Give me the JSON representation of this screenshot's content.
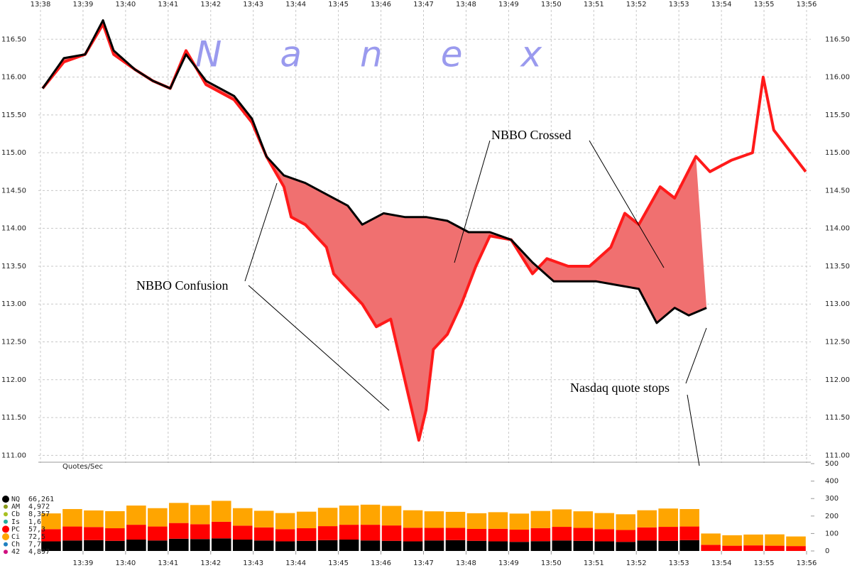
{
  "chart_data": [
    {
      "type": "line",
      "watermark": "Nanex",
      "watermark_color": "#9a9aee",
      "annotations": [
        "NBBO Confusion",
        "NBBO Crossed",
        "Nasdaq quote stops"
      ],
      "area_color": "#f07070",
      "grid": true,
      "xlim": [
        817.95,
        836.1
      ],
      "xticks": [
        {
          "value": 818,
          "label": "13:38"
        },
        {
          "value": 819,
          "label": "13:39"
        },
        {
          "value": 820,
          "label": "13:40"
        },
        {
          "value": 821,
          "label": "13:41"
        },
        {
          "value": 822,
          "label": "13:42"
        },
        {
          "value": 823,
          "label": "13:43"
        },
        {
          "value": 824,
          "label": "13:44"
        },
        {
          "value": 825,
          "label": "13:45"
        },
        {
          "value": 826,
          "label": "13:46"
        },
        {
          "value": 827,
          "label": "13:47"
        },
        {
          "value": 828,
          "label": "13:48"
        },
        {
          "value": 829,
          "label": "13:49"
        },
        {
          "value": 830,
          "label": "13:50"
        },
        {
          "value": 831,
          "label": "13:51"
        },
        {
          "value": 832,
          "label": "13:52"
        },
        {
          "value": 833,
          "label": "13:53"
        },
        {
          "value": 834,
          "label": "13:54"
        },
        {
          "value": 835,
          "label": "13:55"
        },
        {
          "value": 836,
          "label": "13:56"
        }
      ],
      "ylim": [
        110.9,
        117.0
      ],
      "yticks": [
        {
          "value": 111,
          "label": "111.00"
        },
        {
          "value": 111.5,
          "label": "111.50"
        },
        {
          "value": 112,
          "label": "112.00"
        },
        {
          "value": 112.5,
          "label": "112.50"
        },
        {
          "value": 113,
          "label": "113.00"
        },
        {
          "value": 113.5,
          "label": "113.50"
        },
        {
          "value": 114,
          "label": "114.00"
        },
        {
          "value": 114.5,
          "label": "114.50"
        },
        {
          "value": 115,
          "label": "115.00"
        },
        {
          "value": 115.5,
          "label": "115.50"
        },
        {
          "value": 116,
          "label": "116.00"
        },
        {
          "value": 116.5,
          "label": "116.50"
        }
      ],
      "series": [
        {
          "color": "#ff1a1a",
          "width": 4,
          "x": [
            818.05,
            818.55,
            819.05,
            819.47,
            819.72,
            820.22,
            820.64,
            821.05,
            821.42,
            821.89,
            822.55,
            822.97,
            823.31,
            823.72,
            823.89,
            824.22,
            824.72,
            824.89,
            825.22,
            825.56,
            825.89,
            826.23,
            826.56,
            826.89,
            827.06,
            827.23,
            827.56,
            827.89,
            828.23,
            828.56,
            829.06,
            829.56,
            829.9,
            830.4,
            830.9,
            831.4,
            831.73,
            832.06,
            832.56,
            832.9,
            833.4,
            833.73,
            834.23,
            834.73,
            834.98,
            835.23,
            835.57,
            835.98
          ],
          "values": [
            115.85,
            116.2,
            116.3,
            116.7,
            116.3,
            116.1,
            115.95,
            115.85,
            116.35,
            115.9,
            115.7,
            115.4,
            114.95,
            114.55,
            114.15,
            114.05,
            113.75,
            113.4,
            113.2,
            113.0,
            112.7,
            112.8,
            112.0,
            111.2,
            111.6,
            112.4,
            112.6,
            113.0,
            113.5,
            113.9,
            113.85,
            113.4,
            113.6,
            113.5,
            113.5,
            113.75,
            114.2,
            114.05,
            114.55,
            114.4,
            114.95,
            114.75,
            114.9,
            115.0,
            116.0,
            115.3,
            115.05,
            114.75
          ]
        },
        {
          "color": "#000000",
          "width": 3,
          "x": [
            818.05,
            818.55,
            819.05,
            819.47,
            819.72,
            820.22,
            820.64,
            821.05,
            821.42,
            821.89,
            822.55,
            822.97,
            823.31,
            823.72,
            824.22,
            824.72,
            825.22,
            825.56,
            826.06,
            826.56,
            827.06,
            827.56,
            828.06,
            828.56,
            829.06,
            829.56,
            830.06,
            830.56,
            831.06,
            831.56,
            832.06,
            832.48,
            832.9,
            833.23,
            833.65
          ],
          "values": [
            115.85,
            116.25,
            116.3,
            116.75,
            116.35,
            116.1,
            115.95,
            115.85,
            116.3,
            115.95,
            115.75,
            115.45,
            114.95,
            114.7,
            114.6,
            114.45,
            114.3,
            114.05,
            114.2,
            114.15,
            114.15,
            114.1,
            113.95,
            113.95,
            113.85,
            113.55,
            113.3,
            113.3,
            113.3,
            113.25,
            113.2,
            112.75,
            112.95,
            112.85,
            112.95
          ]
        }
      ]
    },
    {
      "type": "bar",
      "stacked": true,
      "ylabel": "Quotes/Sec",
      "xlim": [
        817.95,
        836.1
      ],
      "xticks": [
        {
          "value": 819,
          "label": "13:39"
        },
        {
          "value": 820,
          "label": "13:40"
        },
        {
          "value": 821,
          "label": "13:41"
        },
        {
          "value": 822,
          "label": "13:42"
        },
        {
          "value": 823,
          "label": "13:43"
        },
        {
          "value": 824,
          "label": "13:44"
        },
        {
          "value": 825,
          "label": "13:45"
        },
        {
          "value": 826,
          "label": "13:46"
        },
        {
          "value": 827,
          "label": "13:47"
        },
        {
          "value": 828,
          "label": "13:48"
        },
        {
          "value": 829,
          "label": "13:49"
        },
        {
          "value": 830,
          "label": "13:50"
        },
        {
          "value": 831,
          "label": "13:51"
        },
        {
          "value": 832,
          "label": "13:52"
        },
        {
          "value": 833,
          "label": "13:53"
        },
        {
          "value": 834,
          "label": "13:54"
        },
        {
          "value": 835,
          "label": "13:55"
        },
        {
          "value": 836,
          "label": "13:56"
        }
      ],
      "ylim": [
        0,
        500
      ],
      "yticks": [
        0,
        100,
        200,
        300,
        400,
        500
      ],
      "legend": [
        {
          "name": "NQ",
          "count": "66,261",
          "color": "#000000"
        },
        {
          "name": "AM",
          "count": "4,972",
          "color": "#8a9a1a"
        },
        {
          "name": "Cb",
          "count": "8,357",
          "color": "#a8c020"
        },
        {
          "name": "Is",
          "count": "1,6",
          "color": "#20b0a0"
        },
        {
          "name": "PC",
          "count": "57,3",
          "color": "#ff0000"
        },
        {
          "name": "Ci",
          "count": "72,5",
          "color": "#ffa500"
        },
        {
          "name": "Ch",
          "count": "7,7",
          "color": "#2080c0"
        },
        {
          "name": "42",
          "count": "4,897",
          "color": "#d01080"
        }
      ],
      "x": [
        818.25,
        818.75,
        819.25,
        819.75,
        820.25,
        820.75,
        821.25,
        821.75,
        822.25,
        822.75,
        823.25,
        823.75,
        824.25,
        824.75,
        825.25,
        825.75,
        826.25,
        826.75,
        827.25,
        827.75,
        828.25,
        828.75,
        829.25,
        829.75,
        830.25,
        830.75,
        831.25,
        831.75,
        832.25,
        832.75,
        833.25,
        833.75,
        834.25,
        834.75,
        835.25,
        835.75
      ],
      "series": [
        {
          "color": "#000000",
          "values": [
            55,
            60,
            62,
            58,
            65,
            60,
            70,
            68,
            72,
            65,
            60,
            55,
            58,
            62,
            65,
            60,
            58,
            55,
            60,
            62,
            58,
            55,
            52,
            56,
            60,
            58,
            55,
            52,
            60,
            58,
            62,
            0,
            0,
            0,
            0,
            0
          ]
        },
        {
          "color": "#ff0000",
          "values": [
            70,
            80,
            75,
            72,
            85,
            80,
            90,
            85,
            95,
            80,
            75,
            70,
            72,
            80,
            85,
            90,
            88,
            78,
            72,
            70,
            68,
            72,
            70,
            75,
            78,
            74,
            70,
            68,
            75,
            80,
            78,
            35,
            30,
            32,
            30,
            28
          ]
        },
        {
          "color": "#ffa500",
          "values": [
            90,
            100,
            95,
            98,
            110,
            105,
            115,
            110,
            120,
            100,
            95,
            92,
            95,
            105,
            110,
            115,
            112,
            100,
            95,
            92,
            90,
            95,
            92,
            98,
            100,
            95,
            92,
            90,
            98,
            105,
            100,
            65,
            60,
            62,
            65,
            55
          ]
        }
      ]
    }
  ]
}
